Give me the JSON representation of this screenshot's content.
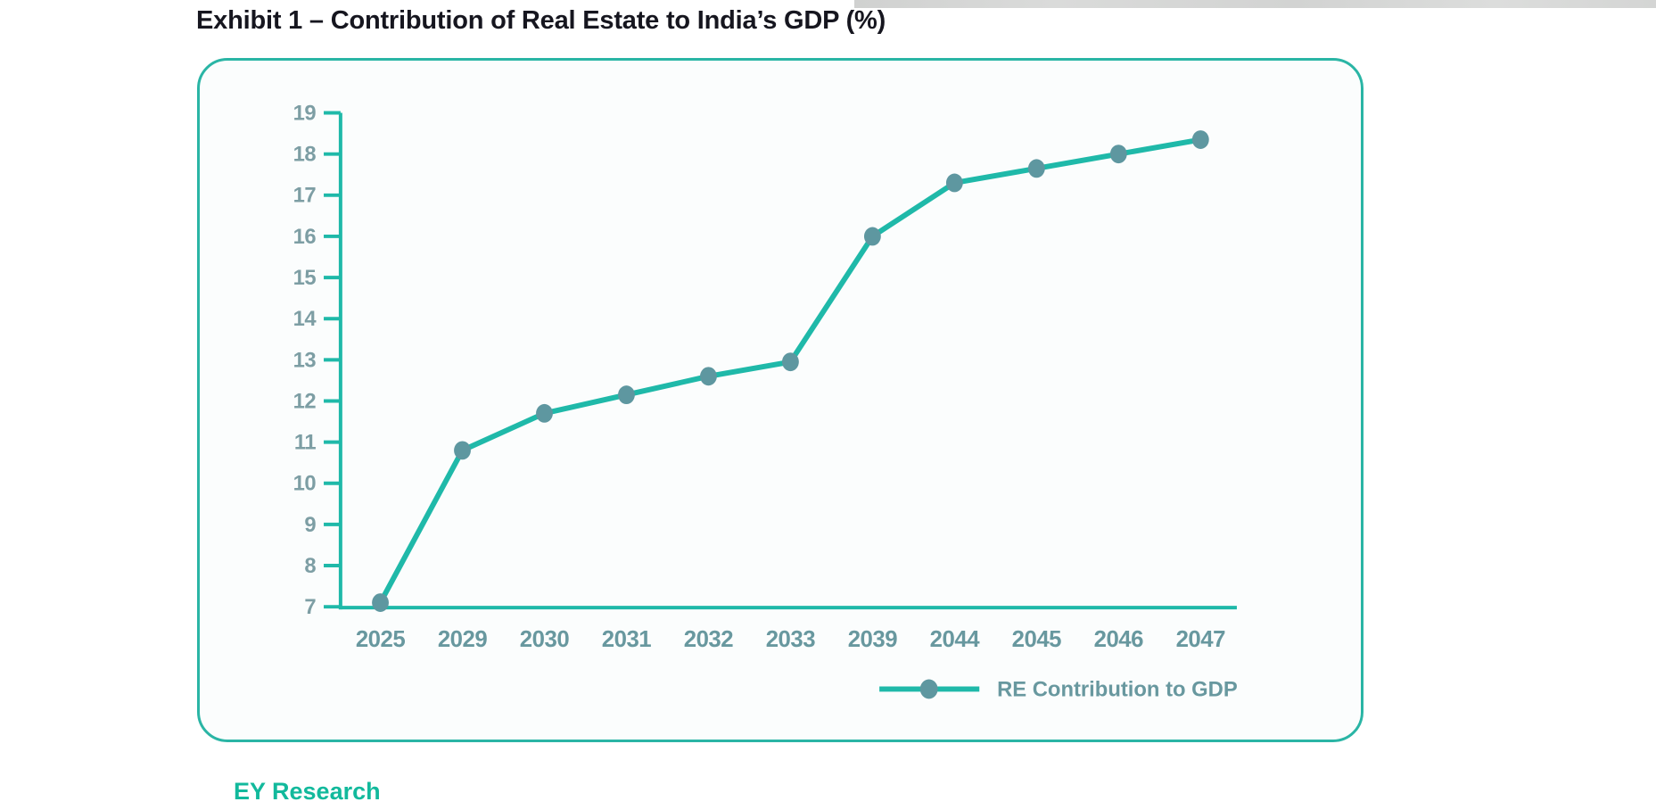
{
  "page": {
    "title": "Exhibit 1 – Contribution of Real Estate to India’s GDP (%)",
    "source_label": "EY Research"
  },
  "colors": {
    "accent_teal": "#1fb9a9",
    "marker_fill": "#5e97a0",
    "ytick_label": "#7d9ea4",
    "year_label": "#68989f",
    "legend_text": "#68989f",
    "title_text": "#16161f",
    "source_text": "#12b99c",
    "card_border": "#2ab5a5",
    "card_background": "#fbfdfd"
  },
  "chart_data": {
    "type": "line",
    "title": "Exhibit 1 – Contribution of Real Estate to India’s GDP (%)",
    "categories": [
      "2025",
      "2029",
      "2030",
      "2031",
      "2032",
      "2033",
      "2039",
      "2044",
      "2045",
      "2046",
      "2047"
    ],
    "series": [
      {
        "name": "RE Contribution to GDP",
        "values": [
          7.1,
          10.8,
          11.7,
          12.15,
          12.6,
          12.95,
          16.0,
          17.3,
          17.65,
          18.0,
          18.35
        ]
      }
    ],
    "xlabel": "",
    "ylabel": "",
    "ylim": [
      7,
      19
    ],
    "yticks": [
      7,
      8,
      9,
      10,
      11,
      12,
      13,
      14,
      15,
      16,
      17,
      18,
      19
    ],
    "grid": false,
    "legend_position": "bottom-right",
    "legend_label": "RE Contribution to GDP"
  }
}
